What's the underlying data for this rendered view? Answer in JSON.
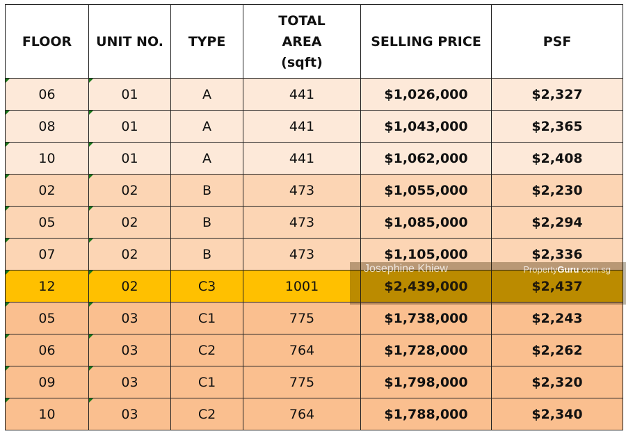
{
  "headers": [
    "FLOOR",
    "UNIT NO.",
    "TYPE",
    "TOTAL AREA (sqft)",
    "SELLING PRICE",
    "PSF"
  ],
  "rows": [
    {
      "floor": "06",
      "unit": "01",
      "type": "A",
      "area": "441",
      "price": "$1,026,000",
      "psf": "$2,327",
      "group": "a"
    },
    {
      "floor": "08",
      "unit": "01",
      "type": "A",
      "area": "441",
      "price": "$1,043,000",
      "psf": "$2,365",
      "group": "a"
    },
    {
      "floor": "10",
      "unit": "01",
      "type": "A",
      "area": "441",
      "price": "$1,062,000",
      "psf": "$2,408",
      "group": "a"
    },
    {
      "floor": "02",
      "unit": "02",
      "type": "B",
      "area": "473",
      "price": "$1,055,000",
      "psf": "$2,230",
      "group": "b"
    },
    {
      "floor": "05",
      "unit": "02",
      "type": "B",
      "area": "473",
      "price": "$1,085,000",
      "psf": "$2,294",
      "group": "b"
    },
    {
      "floor": "07",
      "unit": "02",
      "type": "B",
      "area": "473",
      "price": "$1,105,000",
      "psf": "$2,336",
      "group": "b"
    },
    {
      "floor": "12",
      "unit": "02",
      "type": "C3",
      "area": "1001",
      "price": "$2,439,000",
      "psf": "$2,437",
      "group": "hl"
    },
    {
      "floor": "05",
      "unit": "03",
      "type": "C1",
      "area": "775",
      "price": "$1,738,000",
      "psf": "$2,243",
      "group": "c"
    },
    {
      "floor": "06",
      "unit": "03",
      "type": "C2",
      "area": "764",
      "price": "$1,728,000",
      "psf": "$2,262",
      "group": "c"
    },
    {
      "floor": "09",
      "unit": "03",
      "type": "C1",
      "area": "775",
      "price": "$1,798,000",
      "psf": "$2,320",
      "group": "c"
    },
    {
      "floor": "10",
      "unit": "03",
      "type": "C2",
      "area": "764",
      "price": "$1,788,000",
      "psf": "$2,340",
      "group": "c"
    }
  ],
  "watermark": {
    "name": "Josephine Khiew",
    "logo_a": "Property",
    "logo_b": "Guru",
    "logo_c": "com.sg"
  },
  "colors": {
    "group_a": "#FDE9D9",
    "group_b": "#FCD5B4",
    "group_c": "#FABF8F",
    "highlight": "#FFC000"
  }
}
